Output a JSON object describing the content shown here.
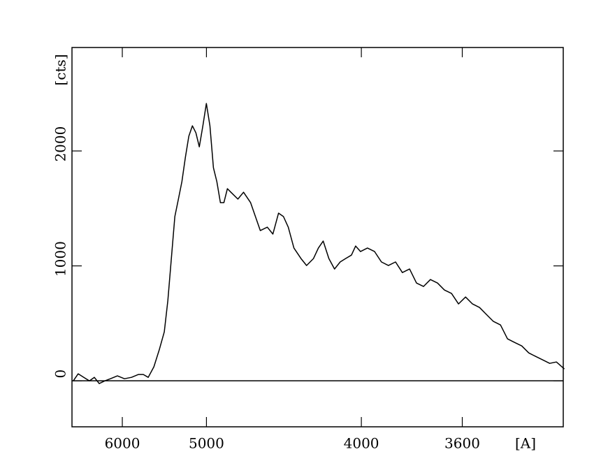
{
  "chart_data": {
    "type": "line",
    "xlabel": "[A]",
    "ylabel": "[cts]",
    "xscale": "inverse_square",
    "zero_line": true,
    "color": "#000000",
    "xlim": [
      6990,
      3300
    ],
    "xticks": [
      6000,
      5000,
      4000,
      3600
    ],
    "ylim": [
      -400,
      2900
    ],
    "yticks": [
      0,
      1000,
      2000
    ],
    "x": [
      6957,
      6840,
      6715,
      6594,
      6494,
      6399,
      6294,
      6196,
      6078,
      5967,
      5861,
      5762,
      5695,
      5631,
      5559,
      5491,
      5433,
      5392,
      5353,
      5314,
      5276,
      5239,
      5203,
      5168,
      5133,
      5099,
      5066,
      5033,
      5001,
      4969,
      4938,
      4908,
      4878,
      4849,
      4820,
      4792,
      4737,
      4694,
      4642,
      4607,
      4573,
      4525,
      4488,
      4451,
      4420,
      4390,
      4356,
      4314,
      4282,
      4243,
      4216,
      4190,
      4160,
      4131,
      4102,
      4075,
      4047,
      4027,
      4004,
      3972,
      3940,
      3910,
      3880,
      3850,
      3822,
      3793,
      3766,
      3739,
      3713,
      3687,
      3662,
      3637,
      3613,
      3589,
      3566,
      3543,
      3521,
      3499,
      3477,
      3456,
      3435,
      3414,
      3394,
      3375,
      3355,
      3336,
      3318,
      3297
    ],
    "values": [
      0,
      61,
      30,
      0,
      30,
      -24,
      0,
      18,
      43,
      18,
      30,
      55,
      55,
      30,
      122,
      274,
      426,
      699,
      1064,
      1429,
      1581,
      1733,
      1945,
      2128,
      2219,
      2158,
      2036,
      2219,
      2413,
      2219,
      1854,
      1733,
      1550,
      1550,
      1672,
      1641,
      1581,
      1641,
      1550,
      1429,
      1307,
      1337,
      1277,
      1459,
      1429,
      1337,
      1155,
      1064,
      1003,
      1064,
      1155,
      1216,
      1064,
      973,
      1034,
      1064,
      1094,
      1173,
      1125,
      1155,
      1125,
      1034,
      1003,
      1034,
      942,
      973,
      851,
      821,
      881,
      851,
      790,
      760,
      669,
      729,
      669,
      638,
      578,
      517,
      486,
      365,
      334,
      304,
      243,
      213,
      182,
      152,
      164,
      103
    ]
  }
}
